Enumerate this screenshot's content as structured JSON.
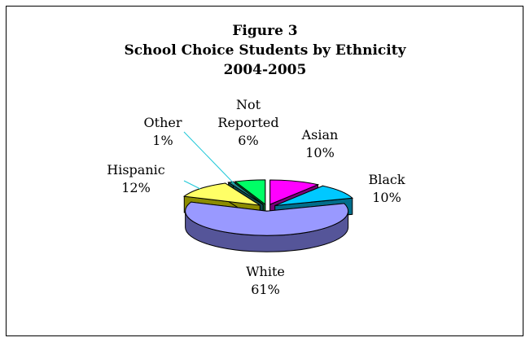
{
  "chart_data": {
    "type": "pie",
    "title_lines": [
      "Figure 3",
      "School Choice Students by Ethnicity",
      "2004-2005"
    ],
    "slices": [
      {
        "name": "Asian",
        "value": 10,
        "label": "10%",
        "color": "#ff00ff",
        "side": "#7a007a"
      },
      {
        "name": "Black",
        "value": 10,
        "label": "10%",
        "color": "#00c8ff",
        "side": "#006e8c"
      },
      {
        "name": "White",
        "value": 61,
        "label": "61%",
        "color": "#9999ff",
        "side": "#555599"
      },
      {
        "name": "Hispanic",
        "value": 12,
        "label": "12%",
        "color": "#ffff66",
        "side": "#8c8c00"
      },
      {
        "name": "Other",
        "value": 1,
        "label": "1%",
        "color": "#1e8c8c",
        "side": "#0e4a4a"
      },
      {
        "name": "Not Reported",
        "name_lines": [
          "Not",
          "Reported"
        ],
        "value": 6,
        "label": "6%",
        "color": "#00ff66",
        "side": "#008833"
      }
    ],
    "style": "3d-exploded",
    "legend": "none"
  }
}
